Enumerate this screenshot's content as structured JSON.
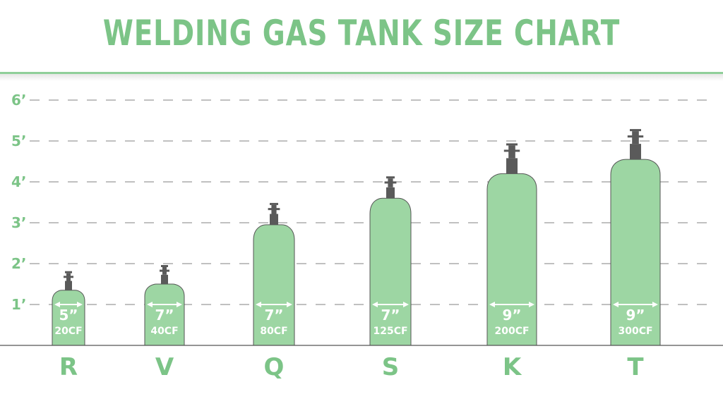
{
  "chart_data": {
    "type": "bar",
    "title": "WELDING GAS TANK SIZE CHART",
    "xlabel": "",
    "ylabel": "",
    "ylim": [
      0,
      6
    ],
    "yticks": [
      {
        "value": 1,
        "label": "1’"
      },
      {
        "value": 2,
        "label": "2’"
      },
      {
        "value": 3,
        "label": "3’"
      },
      {
        "value": 4,
        "label": "4’"
      },
      {
        "value": 5,
        "label": "5’"
      },
      {
        "value": 6,
        "label": "6’"
      }
    ],
    "grid": true,
    "categories": [
      "R",
      "V",
      "Q",
      "S",
      "K",
      "T"
    ],
    "values": [
      1.35,
      1.5,
      2.95,
      3.6,
      4.2,
      4.55
    ],
    "diameters": [
      "5”",
      "7”",
      "7”",
      "7”",
      "9”",
      "9”"
    ],
    "capacities": [
      "20CF",
      "40CF",
      "80CF",
      "125CF",
      "200CF",
      "300CF"
    ],
    "colors": {
      "tank": "#9dd6a3",
      "outline": "#555555",
      "valve": "#5a5a5a",
      "accent": "#7cc487",
      "grid": "#9a9a9a"
    }
  }
}
